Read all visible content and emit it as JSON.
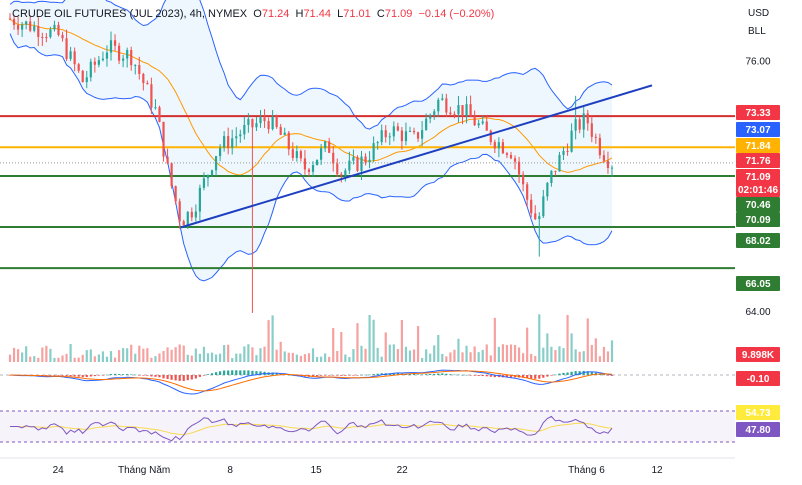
{
  "header": {
    "symbol": "CRUDE OIL FUTURES (JUL 2023), 4h, NYMEX",
    "open_label": "O",
    "open": "71.24",
    "high_label": "H",
    "high": "71.44",
    "low_label": "L",
    "low": "71.01",
    "close_label": "C",
    "close": "71.09",
    "change": "−0.14 (−0.20%)"
  },
  "axis": {
    "currency": "USD",
    "unit": "BLL",
    "price_ticks": [
      "76.00",
      "64.00"
    ],
    "time_ticks": [
      "24",
      "Tháng Năm",
      "8",
      "15",
      "22",
      "Tháng 6",
      "12"
    ]
  },
  "tags": [
    {
      "text": "73.33",
      "color": "#f23645"
    },
    {
      "text": "73.07",
      "color": "#2962ff"
    },
    {
      "text": "71.84",
      "color": "#ffb300"
    },
    {
      "text": "71.76",
      "color": "#f23645"
    },
    {
      "text": "71.09",
      "color": "#f23645",
      "sub": "02:01:46"
    },
    {
      "text": "70.46",
      "color": "#2e7d32"
    },
    {
      "text": "70.09",
      "color": "#2e7d32"
    },
    {
      "text": "68.02",
      "color": "#2e7d32"
    },
    {
      "text": "66.05",
      "color": "#2e7d32"
    },
    {
      "text": "9.898K",
      "color": "#f23645"
    },
    {
      "text": "-0.10",
      "color": "#f23645"
    },
    {
      "text": "54.73",
      "color": "#ffeb3b",
      "dark": true
    },
    {
      "text": "47.80",
      "color": "#7e57c2"
    }
  ],
  "colors": {
    "up": "#26a69a",
    "down": "#ef5350",
    "resistance": "#d32f2f",
    "pivot": "#ffb300",
    "support": "#2e7d32",
    "trend": "#1e40c0",
    "bb_band": "#2962ff",
    "bb_basis": "#ff9800",
    "rsi": "#7e57c2",
    "rsi_ma": "#f9d94d"
  },
  "chart_data": {
    "type": "candlestick",
    "timeframe": "4h",
    "title": "CRUDE OIL FUTURES (JUL 2023), 4h, NYMEX",
    "ylim": [
      62.8,
      78.6
    ],
    "horizontal_levels": [
      {
        "value": 73.33,
        "color": "resistance"
      },
      {
        "value": 71.84,
        "color": "pivot"
      },
      {
        "value": 70.46,
        "color": "support"
      },
      {
        "value": 68.02,
        "color": "support"
      },
      {
        "value": 66.05,
        "color": "support"
      }
    ],
    "trendline": {
      "from": {
        "x": "May 4",
        "y": 68.0
      },
      "to": {
        "x": "Jun 10",
        "y": 74.8
      }
    },
    "close_path": [
      [
        "Apr 20",
        78.0
      ],
      [
        "Apr 24",
        77.2
      ],
      [
        "Apr 26",
        75.0
      ],
      [
        "Apr 28",
        76.6
      ],
      [
        "Apr 30",
        76.2
      ],
      [
        "May 2",
        73.5
      ],
      [
        "May 3",
        70.5
      ],
      [
        "May 4",
        68.3
      ],
      [
        "May 5",
        68.9
      ],
      [
        "May 7",
        71.8
      ],
      [
        "May 9",
        72.6
      ],
      [
        "May 11",
        73.2
      ],
      [
        "May 12",
        72.5
      ],
      [
        "May 14",
        70.8
      ],
      [
        "May 16",
        71.9
      ],
      [
        "May 17",
        70.6
      ],
      [
        "May 19",
        71.3
      ],
      [
        "May 21",
        72.7
      ],
      [
        "May 23",
        72.2
      ],
      [
        "May 25",
        74.1
      ],
      [
        "May 27",
        73.6
      ],
      [
        "May 29",
        72.4
      ],
      [
        "May 31",
        71.6
      ],
      [
        "Jun 1",
        69.6
      ],
      [
        "Jun 2",
        68.2
      ],
      [
        "Jun 3",
        70.3
      ],
      [
        "Jun 5",
        72.7
      ],
      [
        "Jun 6",
        73.2
      ],
      [
        "Jun 7",
        71.9
      ],
      [
        "Jun 8",
        71.09
      ]
    ],
    "indicators": {
      "volume_last": "9.898K",
      "macd_last": -0.1,
      "rsi_last": 47.8,
      "rsi_ma_last": 54.73
    }
  }
}
